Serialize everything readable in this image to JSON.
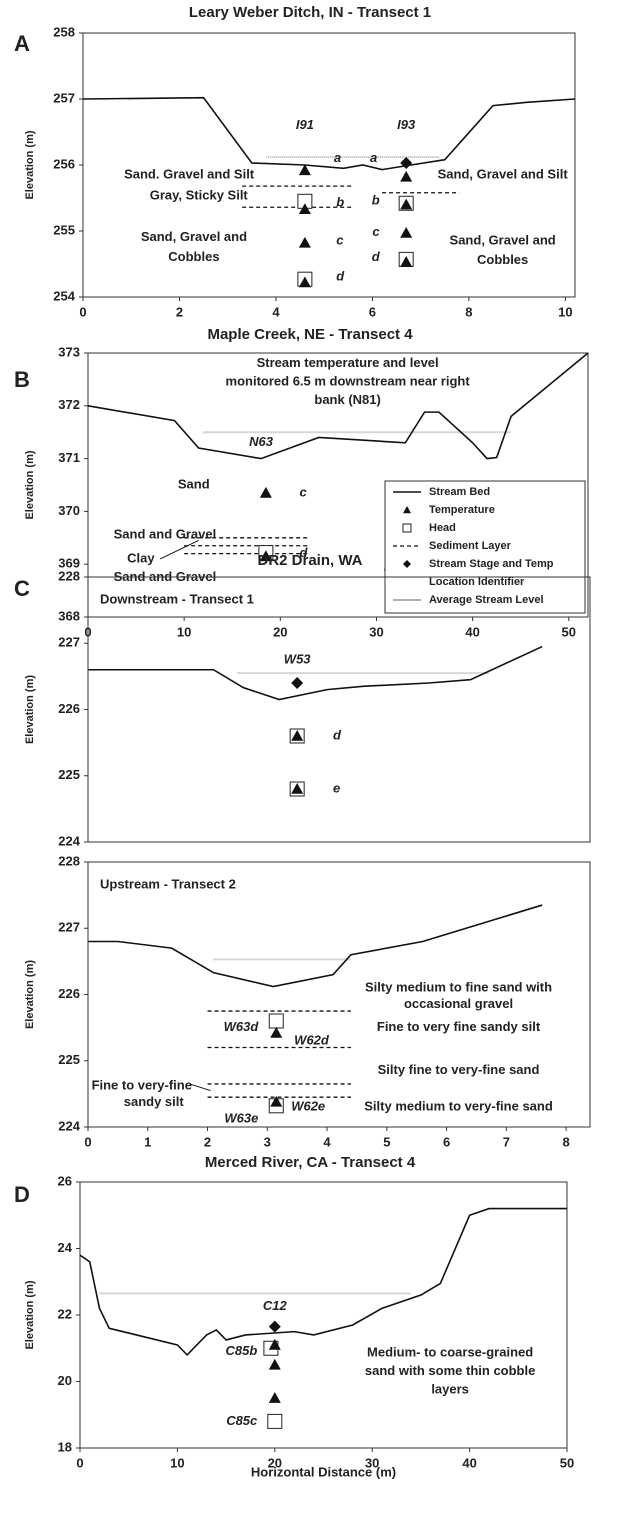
{
  "chart_data": [
    {
      "type": "line",
      "panel": "A",
      "title": "Leary Weber Ditch, IN - Transect 1",
      "ylabel": "Elevation (m)",
      "xlim": [
        0,
        10.2
      ],
      "ylim": [
        254,
        258
      ],
      "xticks": [
        0,
        2,
        4,
        6,
        8,
        10
      ],
      "yticks": [
        254,
        255,
        256,
        257,
        258
      ],
      "stream_bed": {
        "x": [
          0,
          2.5,
          3.5,
          4.6,
          5.4,
          5.8,
          6.2,
          6.8,
          7.5,
          8.5,
          9.2,
          10.2
        ],
        "values": [
          257,
          257.02,
          256.03,
          256,
          255.95,
          256,
          255.93,
          256,
          256.08,
          256.9,
          256.95,
          257
        ]
      },
      "average_level": {
        "x": [
          3.8,
          7.4
        ],
        "values": [
          256.12,
          256.12
        ]
      },
      "sediment_layers": [
        {
          "x": [
            3.3,
            5.6
          ],
          "values": [
            255.68,
            255.68
          ]
        },
        {
          "x": [
            3.3,
            5.6
          ],
          "values": [
            255.36,
            255.36
          ]
        },
        {
          "x": [
            6.2,
            7.8
          ],
          "values": [
            255.58,
            255.58
          ]
        }
      ],
      "head": {
        "x": [
          4.6,
          4.6,
          6.7,
          6.7
        ],
        "values": [
          255.45,
          254.27,
          255.42,
          254.57
        ]
      },
      "temperature": {
        "x": [
          4.6,
          4.6,
          4.6,
          4.6,
          6.7,
          6.7,
          6.7,
          6.7
        ],
        "values": [
          255.92,
          255.33,
          254.82,
          254.22,
          255.82,
          255.4,
          254.97,
          254.53
        ]
      },
      "stage": {
        "x": [
          6.7
        ],
        "values": [
          256.03
        ]
      },
      "annotations": [
        {
          "text": "I91"
        },
        {
          "text": "I93"
        },
        {
          "text": "a"
        },
        {
          "text": "a"
        },
        {
          "text": "b"
        },
        {
          "text": "b"
        },
        {
          "text": "c"
        },
        {
          "text": "c"
        },
        {
          "text": "d"
        },
        {
          "text": "d"
        },
        {
          "text": "Sand. Gravel and Silt"
        },
        {
          "text": "Gray, Sticky Silt"
        },
        {
          "text": "Sand, Gravel and"
        },
        {
          "text": "Cobbles"
        },
        {
          "text": "Sand, Gravel and Silt"
        },
        {
          "text": "Sand, Gravel and"
        },
        {
          "text": "Cobbles"
        }
      ]
    },
    {
      "type": "line",
      "panel": "B",
      "title": "Maple Creek, NE - Transect 4",
      "ylabel": "Elevation (m)",
      "xlim": [
        0,
        52
      ],
      "ylim": [
        368,
        373
      ],
      "xticks": [
        0,
        10,
        20,
        30,
        40,
        50
      ],
      "yticks": [
        368,
        369,
        370,
        371,
        372,
        373
      ],
      "stream_bed": {
        "x": [
          0,
          9,
          11.5,
          18,
          24,
          33,
          35,
          36.5,
          40,
          41.5,
          42.5,
          44,
          52
        ],
        "values": [
          372,
          371.72,
          371.2,
          371,
          371.4,
          371.3,
          371.88,
          371.88,
          371.3,
          371,
          371.02,
          371.8,
          373
        ]
      },
      "average_level": {
        "x": [
          12,
          44
        ],
        "values": [
          371.5,
          371.5
        ]
      },
      "sediment_layers": [
        {
          "x": [
            10,
            23
          ],
          "values": [
            369.5,
            369.5
          ]
        },
        {
          "x": [
            10,
            23
          ],
          "values": [
            369.35,
            369.35
          ]
        },
        {
          "x": [
            10,
            23
          ],
          "values": [
            369.2,
            369.2
          ]
        }
      ],
      "head": {
        "x": [
          18.5
        ],
        "values": [
          369.22
        ]
      },
      "temperature": {
        "x": [
          18.5,
          18.5
        ],
        "values": [
          370.35,
          369.15
        ]
      },
      "stage": {
        "x": [],
        "values": []
      },
      "annotations": [
        {
          "text": "Stream temperature and level"
        },
        {
          "text": "monitored 6.5 m downstream near right"
        },
        {
          "text": "bank (N81)"
        },
        {
          "text": "N63"
        },
        {
          "text": "Sand"
        },
        {
          "text": "c"
        },
        {
          "text": "Sand and Gravel"
        },
        {
          "text": "Clay"
        },
        {
          "text": "d"
        },
        {
          "text": "Sand and Gravel"
        },
        {
          "text": "N63"
        }
      ],
      "legend": {
        "corner": "lower right",
        "entries": [
          {
            "name": "Stream Bed",
            "marker": "line"
          },
          {
            "name": "Temperature",
            "marker": "triangle"
          },
          {
            "name": "Head",
            "marker": "square"
          },
          {
            "name": "Sediment Layer",
            "marker": "dash"
          },
          {
            "name": "Stream Stage and Temp Location Identifier",
            "marker": "diamond"
          },
          {
            "name": "Average Stream Level",
            "marker": "gray"
          }
        ]
      }
    },
    {
      "type": "line",
      "panel": "C",
      "title": "DR2 Drain, WA",
      "subtitle": "Downstream - Transect 1",
      "ylabel": "Elevation (m)",
      "xlim": [
        0,
        8.4
      ],
      "ylim": [
        224,
        228
      ],
      "yticks": [
        224,
        225,
        226,
        227,
        228
      ],
      "stream_bed": {
        "x": [
          0,
          2.1,
          2.6,
          3.2,
          4,
          4.6,
          5.7,
          6.4,
          7.6
        ],
        "values": [
          226.6,
          226.6,
          226.33,
          226.15,
          226.3,
          226.35,
          226.4,
          226.45,
          226.95
        ]
      },
      "average_level": {
        "x": [
          2.5,
          6.7
        ],
        "values": [
          226.55,
          226.55
        ]
      },
      "sediment_layers": [],
      "head": {
        "x": [
          3.5,
          3.5
        ],
        "values": [
          225.6,
          224.8
        ]
      },
      "temperature": {
        "x": [
          3.5,
          3.5
        ],
        "values": [
          225.6,
          224.8
        ]
      },
      "stage": {
        "x": [
          3.5
        ],
        "values": [
          226.4
        ]
      },
      "annotations": [
        {
          "text": "W53"
        },
        {
          "text": "d"
        },
        {
          "text": "e"
        }
      ]
    },
    {
      "type": "line",
      "subtitle": "Upstream - Transect 2",
      "ylabel": "Elevation (m)",
      "xlim": [
        0,
        8.4
      ],
      "ylim": [
        224,
        228
      ],
      "xticks": [
        0,
        1,
        2,
        3,
        4,
        5,
        6,
        7,
        8
      ],
      "yticks": [
        224,
        225,
        226,
        227,
        228
      ],
      "stream_bed": {
        "x": [
          0,
          0.5,
          1.4,
          2.1,
          3.1,
          4.1,
          4.4,
          5.6,
          7.6
        ],
        "values": [
          226.8,
          226.8,
          226.7,
          226.33,
          226.12,
          226.3,
          226.6,
          226.8,
          227.35
        ]
      },
      "average_level": {
        "x": [
          2.1,
          4.4
        ],
        "values": [
          226.53,
          226.53
        ]
      },
      "sediment_layers": [
        {
          "x": [
            2,
            4.4
          ],
          "values": [
            225.75,
            225.75
          ]
        },
        {
          "x": [
            2,
            4.4
          ],
          "values": [
            225.2,
            225.2
          ]
        },
        {
          "x": [
            2,
            4.4
          ],
          "values": [
            224.65,
            224.65
          ]
        },
        {
          "x": [
            2,
            4.4
          ],
          "values": [
            224.45,
            224.45
          ]
        }
      ],
      "head": {
        "x": [
          3.15,
          3.15
        ],
        "values": [
          225.6,
          224.32
        ]
      },
      "temperature": {
        "x": [
          3.15,
          3.15
        ],
        "values": [
          225.42,
          224.38
        ]
      },
      "stage": {
        "x": [],
        "values": []
      },
      "annotations": [
        {
          "text": "W63d"
        },
        {
          "text": "W62d"
        },
        {
          "text": "W63e"
        },
        {
          "text": "W62e"
        },
        {
          "text": "Silty medium to fine sand with"
        },
        {
          "text": "occasional gravel"
        },
        {
          "text": "Fine to very fine sandy silt"
        },
        {
          "text": "Silty fine to very-fine sand"
        },
        {
          "text": "Silty medium to very-fine sand"
        },
        {
          "text": "Fine to very-fine"
        },
        {
          "text": "sandy silt"
        }
      ]
    },
    {
      "type": "line",
      "panel": "D",
      "title": "Merced River, CA - Transect 4",
      "ylabel": "Elevation (m)",
      "xlabel": "Horizontal Distance (m)",
      "xlim": [
        0,
        50
      ],
      "ylim": [
        18,
        26
      ],
      "xticks": [
        0,
        10,
        20,
        30,
        40,
        50
      ],
      "yticks": [
        18,
        20,
        22,
        24,
        26
      ],
      "stream_bed": {
        "x": [
          0,
          1,
          2,
          3,
          10,
          11,
          13,
          14,
          15,
          17,
          22,
          24,
          28,
          31,
          35,
          37,
          40,
          42,
          50
        ],
        "values": [
          23.8,
          23.6,
          22.2,
          21.6,
          21.1,
          20.8,
          21.4,
          21.55,
          21.25,
          21.4,
          21.5,
          21.4,
          21.7,
          22.2,
          22.6,
          22.95,
          25,
          25.2,
          25.2
        ]
      },
      "average_level": {
        "x": [
          2,
          34
        ],
        "values": [
          22.65,
          22.65
        ]
      },
      "sediment_layers": [],
      "head": {
        "x": [
          19.6,
          20
        ],
        "values": [
          21,
          18.8
        ]
      },
      "temperature": {
        "x": [
          20,
          20,
          20
        ],
        "values": [
          21.1,
          20.5,
          19.5
        ]
      },
      "stage": {
        "x": [
          20
        ],
        "values": [
          21.65
        ]
      },
      "annotations": [
        {
          "text": "C12"
        },
        {
          "text": "C85b"
        },
        {
          "text": "C85c"
        },
        {
          "text": "Medium- to coarse-grained"
        },
        {
          "text": "sand with some thin cobble"
        },
        {
          "text": "layers"
        }
      ]
    }
  ]
}
